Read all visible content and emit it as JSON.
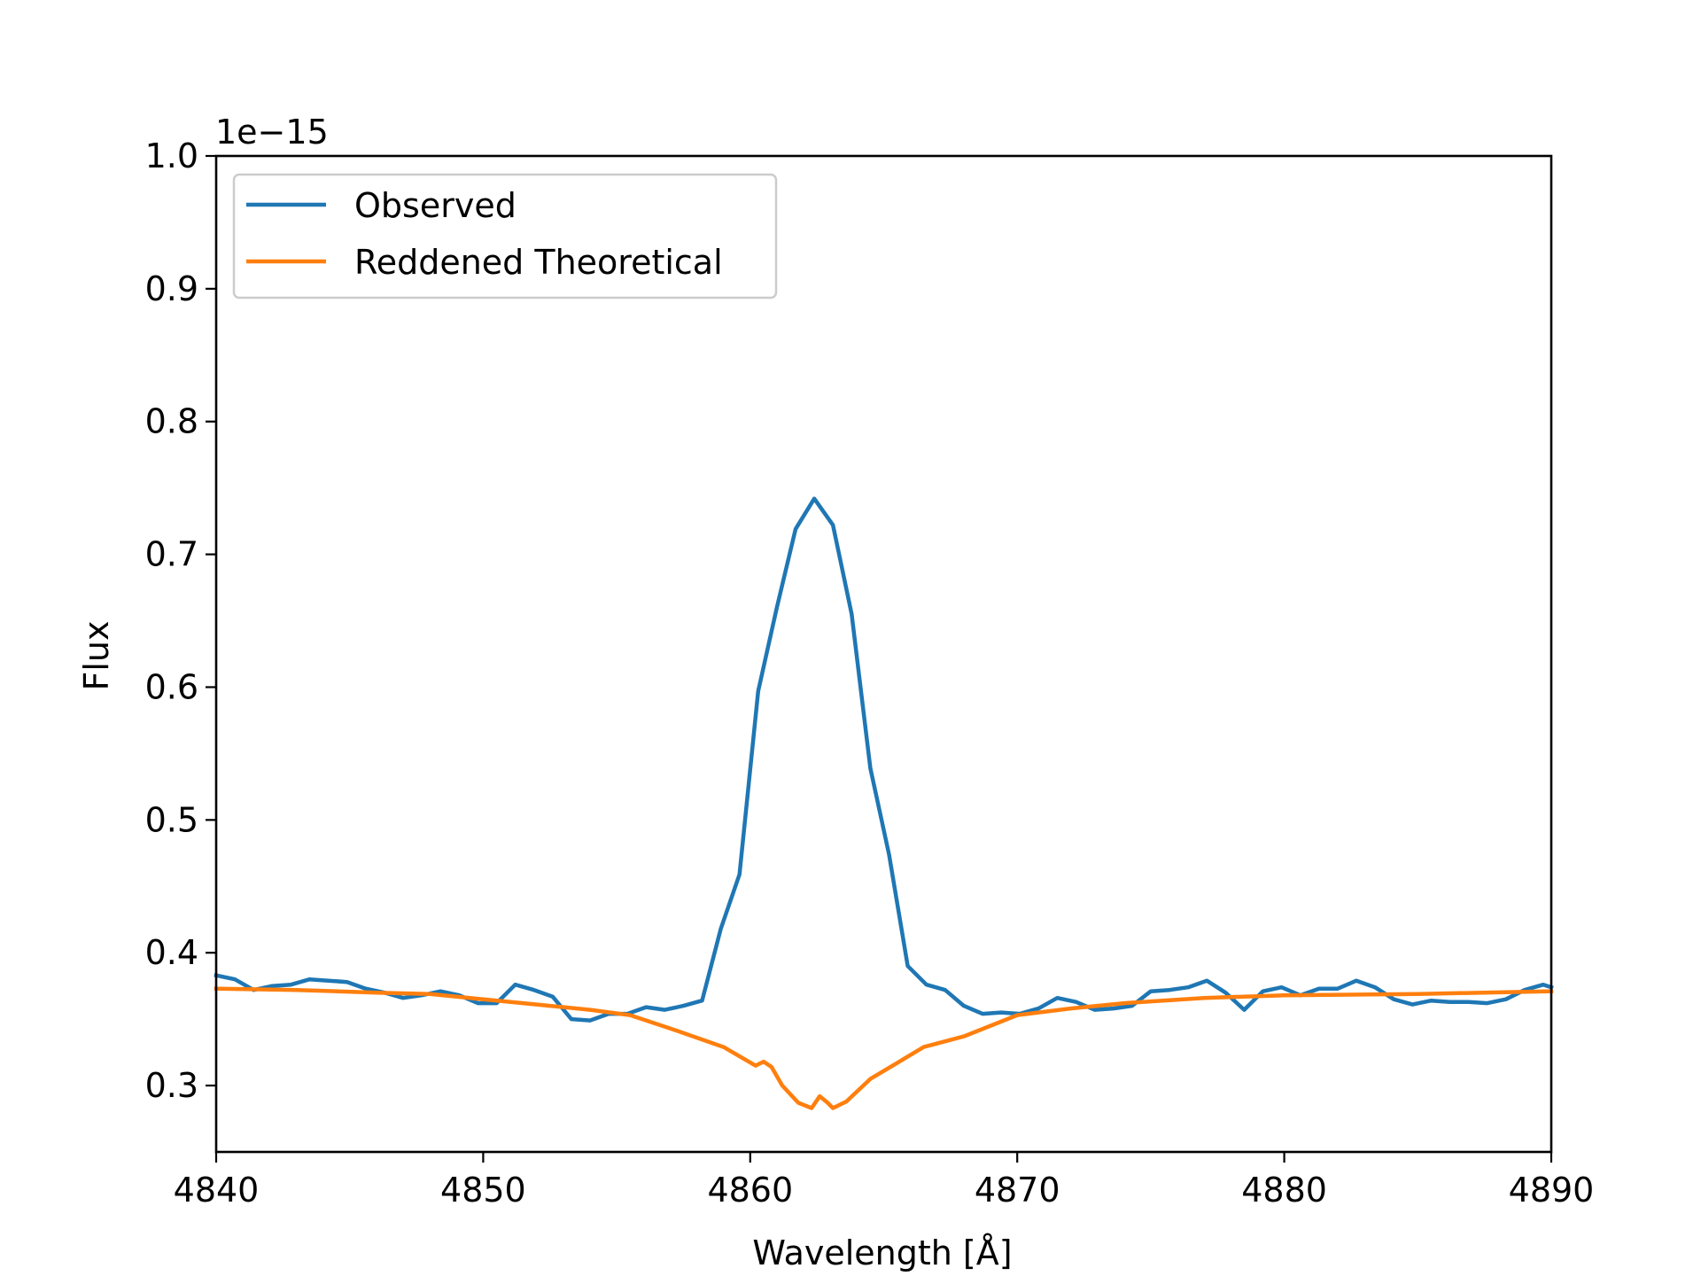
{
  "chart_data": {
    "type": "line",
    "title": "",
    "xlabel": "Wavelength [Å]",
    "ylabel": "Flux",
    "y_offset_text": "1e−15",
    "xlim": [
      4840,
      4890
    ],
    "ylim": [
      0.25,
      1.0
    ],
    "x_ticks": [
      4840,
      4850,
      4860,
      4870,
      4880,
      4890
    ],
    "y_ticks": [
      0.3,
      0.4,
      0.5,
      0.6,
      0.7,
      0.8,
      0.9,
      1.0
    ],
    "x_tick_labels": [
      "4840",
      "4850",
      "4860",
      "4870",
      "4880",
      "4890"
    ],
    "y_tick_labels": [
      "0.3",
      "0.4",
      "0.5",
      "0.6",
      "0.7",
      "0.8",
      "0.9",
      "1.0"
    ],
    "grid": false,
    "legend_position": "upper-left",
    "series": [
      {
        "name": "Observed",
        "color": "#1f77b4",
        "x": [
          4840,
          4840.7,
          4841.4,
          4842.1,
          4842.8,
          4843.5,
          4844.2,
          4844.9,
          4845.6,
          4846.3,
          4847.0,
          4847.7,
          4848.4,
          4849.1,
          4849.8,
          4850.5,
          4851.2,
          4851.9,
          4852.6,
          4853.3,
          4854.0,
          4854.7,
          4855.4,
          4856.1,
          4856.8,
          4857.5,
          4858.2,
          4858.9,
          4859.6,
          4860.3,
          4861.0,
          4861.7,
          4862.4,
          4863.1,
          4863.8,
          4864.5,
          4865.2,
          4865.9,
          4866.6,
          4867.3,
          4868.0,
          4868.7,
          4869.4,
          4870.1,
          4870.8,
          4871.5,
          4872.2,
          4872.9,
          4873.6,
          4874.3,
          4875.0,
          4875.7,
          4876.4,
          4877.1,
          4877.8,
          4878.5,
          4879.2,
          4879.9,
          4880.6,
          4881.3,
          4882.0,
          4882.7,
          4883.4,
          4884.1,
          4884.8,
          4885.5,
          4886.2,
          4886.9,
          4887.6,
          4888.3,
          4889.0,
          4889.7,
          4890
        ],
        "y": [
          0.383,
          0.38,
          0.372,
          0.375,
          0.376,
          0.38,
          0.379,
          0.378,
          0.373,
          0.37,
          0.366,
          0.368,
          0.371,
          0.368,
          0.362,
          0.362,
          0.376,
          0.372,
          0.367,
          0.35,
          0.349,
          0.354,
          0.354,
          0.359,
          0.357,
          0.36,
          0.364,
          0.418,
          0.459,
          0.597,
          0.66,
          0.719,
          0.742,
          0.722,
          0.655,
          0.539,
          0.474,
          0.39,
          0.376,
          0.372,
          0.36,
          0.354,
          0.355,
          0.354,
          0.358,
          0.366,
          0.363,
          0.357,
          0.358,
          0.36,
          0.371,
          0.372,
          0.374,
          0.379,
          0.37,
          0.357,
          0.371,
          0.374,
          0.368,
          0.373,
          0.373,
          0.379,
          0.374,
          0.365,
          0.361,
          0.364,
          0.363,
          0.363,
          0.362,
          0.365,
          0.372,
          0.376,
          0.374
        ]
      },
      {
        "name": "Reddened Theoretical",
        "color": "#ff7f0e",
        "x": [
          4840,
          4843,
          4846,
          4848,
          4850,
          4852,
          4854,
          4855.5,
          4857,
          4859,
          4860.2,
          4860.5,
          4860.8,
          4861.2,
          4861.8,
          4862.3,
          4862.6,
          4862.9,
          4863.1,
          4863.6,
          4864.5,
          4866.5,
          4868,
          4870,
          4872,
          4874,
          4877,
          4880,
          4885,
          4890
        ],
        "y": [
          0.373,
          0.372,
          0.37,
          0.369,
          0.365,
          0.361,
          0.357,
          0.353,
          0.343,
          0.329,
          0.315,
          0.318,
          0.314,
          0.3,
          0.287,
          0.283,
          0.292,
          0.287,
          0.283,
          0.288,
          0.305,
          0.329,
          0.337,
          0.353,
          0.358,
          0.362,
          0.366,
          0.368,
          0.369,
          0.371
        ]
      }
    ]
  }
}
